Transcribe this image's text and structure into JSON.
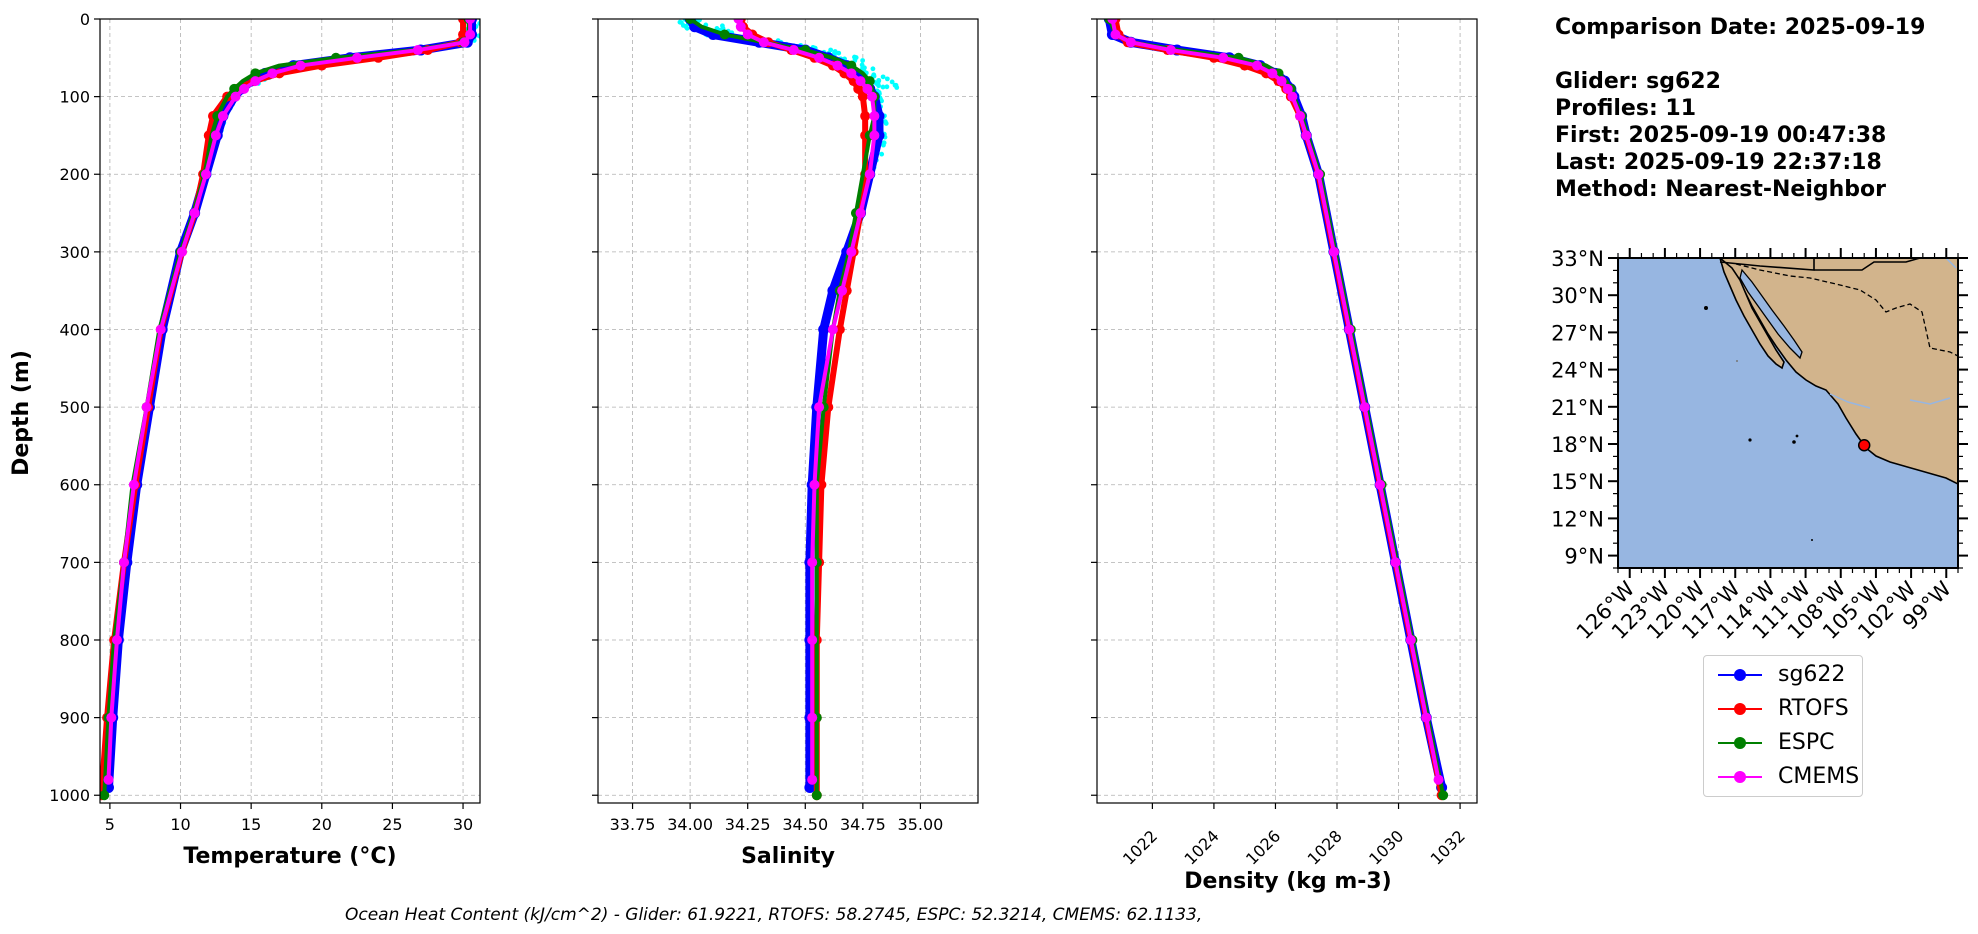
{
  "info": {
    "comparison_date": "Comparison Date: 2025-09-19",
    "glider": "Glider: sg622",
    "profiles": "Profiles: 11",
    "first": "First: 2025-09-19 00:47:38",
    "last": "Last: 2025-09-19 22:37:18",
    "method": "Method: Nearest-Neighbor"
  },
  "footer": "Ocean Heat Content (kJ/cm^2) - Glider: 61.9221,  RTOFS: 58.2745,  ESPC: 52.3214,  CMEMS: 62.1133,",
  "legend": [
    {
      "label": "sg622",
      "color": "#0000ff"
    },
    {
      "label": "RTOFS",
      "color": "#ff0000"
    },
    {
      "label": "ESPC",
      "color": "#008000"
    },
    {
      "label": "CMEMS",
      "color": "#ff00ff"
    }
  ],
  "chart_data": [
    {
      "type": "line",
      "title": "",
      "xlabel": "Temperature (°C)",
      "ylabel": "Depth (m)",
      "xlim": [
        4.3,
        31.2
      ],
      "ylim": [
        1010,
        0
      ],
      "xticks": [
        5,
        10,
        15,
        20,
        25,
        30
      ],
      "yticks": [
        0,
        100,
        200,
        300,
        400,
        500,
        600,
        700,
        800,
        900,
        1000
      ],
      "grid": true,
      "series": [
        {
          "name": "sg622",
          "color": "#0000ff",
          "depth": [
            0,
            20,
            30,
            40,
            50,
            60,
            70,
            80,
            90,
            100,
            125,
            150,
            200,
            250,
            300,
            400,
            500,
            600,
            700,
            800,
            900,
            990
          ],
          "values": [
            30.6,
            30.6,
            30.3,
            27,
            22,
            18,
            16,
            15,
            14.3,
            13.8,
            13,
            12.6,
            11.8,
            11,
            10,
            8.7,
            7.8,
            6.9,
            6.2,
            5.6,
            5.2,
            4.9
          ]
        },
        {
          "name": "RTOFS",
          "color": "#ff0000",
          "depth": [
            0,
            20,
            30,
            40,
            50,
            60,
            70,
            80,
            90,
            100,
            125,
            150,
            200,
            250,
            300,
            400,
            500,
            600,
            700,
            800,
            900,
            1000
          ],
          "values": [
            30,
            30,
            29.8,
            27.5,
            24,
            20,
            17,
            15.2,
            14,
            13.3,
            12.3,
            12,
            11.6,
            11,
            10.1,
            8.6,
            7.7,
            6.8,
            6,
            5.3,
            4.8,
            4.4
          ]
        },
        {
          "name": "ESPC",
          "color": "#008000",
          "depth": [
            0,
            20,
            30,
            40,
            50,
            60,
            70,
            80,
            90,
            100,
            125,
            150,
            200,
            250,
            300,
            400,
            500,
            600,
            700,
            800,
            900,
            1000
          ],
          "values": [
            30.4,
            30.4,
            30,
            26.5,
            21,
            17,
            15.3,
            14.4,
            13.8,
            13.3,
            12.6,
            12.2,
            11.7,
            10.9,
            10,
            8.5,
            7.6,
            6.6,
            6,
            5.3,
            4.9,
            4.6
          ]
        },
        {
          "name": "CMEMS",
          "color": "#ff00ff",
          "depth": [
            0,
            20,
            30,
            40,
            50,
            60,
            70,
            80,
            90,
            100,
            125,
            150,
            200,
            250,
            300,
            400,
            500,
            600,
            700,
            800,
            900,
            980
          ],
          "values": [
            30.5,
            30.5,
            30.1,
            26.8,
            22.5,
            18.5,
            16.5,
            15.3,
            14.5,
            13.9,
            13,
            12.5,
            11.8,
            11,
            10.1,
            8.6,
            7.6,
            6.7,
            6,
            5.5,
            5.1,
            4.9
          ]
        }
      ]
    },
    {
      "type": "line",
      "title": "",
      "xlabel": "Salinity",
      "ylabel": "",
      "xlim": [
        33.6,
        35.25
      ],
      "ylim": [
        1010,
        0
      ],
      "xticks": [
        33.75,
        34.0,
        34.25,
        34.5,
        34.75,
        35.0
      ],
      "xtick_labels": [
        "33.75",
        "34.00",
        "34.25",
        "34.50",
        "34.75",
        "35.00"
      ],
      "grid": true,
      "series": [
        {
          "name": "sg622",
          "color": "#0000ff",
          "depth": [
            0,
            10,
            20,
            30,
            40,
            50,
            60,
            70,
            80,
            90,
            100,
            125,
            150,
            200,
            250,
            300,
            350,
            400,
            500,
            600,
            700,
            800,
            900,
            990
          ],
          "values": [
            34.0,
            34.02,
            34.1,
            34.3,
            34.5,
            34.6,
            34.68,
            34.72,
            34.76,
            34.78,
            34.8,
            34.82,
            34.82,
            34.78,
            34.74,
            34.68,
            34.62,
            34.58,
            34.55,
            34.53,
            34.52,
            34.52,
            34.52,
            34.52
          ]
        },
        {
          "name": "RTOFS",
          "color": "#ff0000",
          "depth": [
            0,
            10,
            20,
            30,
            40,
            50,
            60,
            70,
            80,
            90,
            100,
            125,
            150,
            200,
            250,
            300,
            350,
            400,
            500,
            600,
            700,
            800,
            900,
            1000
          ],
          "values": [
            34.22,
            34.23,
            34.27,
            34.34,
            34.44,
            34.54,
            34.62,
            34.67,
            34.71,
            34.73,
            34.75,
            34.76,
            34.76,
            34.76,
            34.74,
            34.71,
            34.68,
            34.65,
            34.6,
            34.57,
            34.56,
            34.55,
            34.55,
            34.55
          ]
        },
        {
          "name": "ESPC",
          "color": "#008000",
          "depth": [
            0,
            10,
            20,
            30,
            40,
            50,
            60,
            70,
            80,
            90,
            100,
            125,
            150,
            200,
            250,
            300,
            350,
            400,
            500,
            600,
            700,
            800,
            900,
            1000
          ],
          "values": [
            34.0,
            34.05,
            34.15,
            34.32,
            34.5,
            34.62,
            34.7,
            34.75,
            34.78,
            34.79,
            34.8,
            34.8,
            34.78,
            34.75,
            34.72,
            34.69,
            34.65,
            34.62,
            34.58,
            34.55,
            34.55,
            34.55,
            34.55,
            34.55
          ]
        },
        {
          "name": "CMEMS",
          "color": "#ff00ff",
          "depth": [
            0,
            10,
            20,
            30,
            40,
            50,
            60,
            70,
            80,
            90,
            100,
            125,
            150,
            200,
            250,
            300,
            350,
            400,
            500,
            600,
            700,
            800,
            900,
            980
          ],
          "values": [
            34.21,
            34.22,
            34.25,
            34.32,
            34.45,
            34.56,
            34.64,
            34.7,
            34.74,
            34.77,
            34.79,
            34.8,
            34.8,
            34.78,
            34.74,
            34.7,
            34.66,
            34.62,
            34.56,
            34.54,
            34.53,
            34.53,
            34.53,
            34.53
          ]
        }
      ]
    },
    {
      "type": "line",
      "title": "",
      "xlabel": "Density (kg m-3)",
      "ylabel": "",
      "xlim": [
        1020.2,
        1032.55
      ],
      "ylim": [
        1010,
        0
      ],
      "xticks": [
        1022,
        1024,
        1026,
        1028,
        1030,
        1032
      ],
      "grid": true,
      "series": [
        {
          "name": "sg622",
          "color": "#0000ff",
          "depth": [
            0,
            20,
            30,
            40,
            50,
            60,
            70,
            80,
            90,
            100,
            125,
            150,
            200,
            300,
            400,
            500,
            600,
            700,
            800,
            900,
            990
          ],
          "values": [
            1020.6,
            1020.7,
            1021.3,
            1022.8,
            1024.5,
            1025.5,
            1026.0,
            1026.3,
            1026.5,
            1026.6,
            1026.85,
            1027.0,
            1027.4,
            1027.9,
            1028.4,
            1028.9,
            1029.4,
            1029.9,
            1030.4,
            1030.9,
            1031.4
          ]
        },
        {
          "name": "RTOFS",
          "color": "#ff0000",
          "depth": [
            0,
            20,
            30,
            40,
            50,
            60,
            70,
            80,
            90,
            100,
            125,
            150,
            200,
            300,
            400,
            500,
            600,
            700,
            800,
            900,
            1000
          ],
          "values": [
            1020.8,
            1020.9,
            1021.2,
            1022.5,
            1024.0,
            1025.0,
            1025.7,
            1026.1,
            1026.35,
            1026.5,
            1026.8,
            1027.0,
            1027.4,
            1027.9,
            1028.4,
            1028.9,
            1029.4,
            1029.9,
            1030.4,
            1030.9,
            1031.4
          ]
        },
        {
          "name": "ESPC",
          "color": "#008000",
          "depth": [
            0,
            20,
            30,
            40,
            50,
            60,
            70,
            80,
            90,
            100,
            125,
            150,
            200,
            300,
            400,
            500,
            600,
            700,
            800,
            900,
            1000
          ],
          "values": [
            1020.6,
            1020.8,
            1021.3,
            1022.9,
            1024.8,
            1025.7,
            1026.1,
            1026.35,
            1026.5,
            1026.6,
            1026.85,
            1027.05,
            1027.45,
            1027.95,
            1028.45,
            1028.95,
            1029.45,
            1029.95,
            1030.45,
            1030.95,
            1031.45
          ]
        },
        {
          "name": "CMEMS",
          "color": "#ff00ff",
          "depth": [
            0,
            20,
            30,
            40,
            50,
            60,
            70,
            80,
            90,
            100,
            125,
            150,
            200,
            300,
            400,
            500,
            600,
            700,
            800,
            900,
            980
          ],
          "values": [
            1020.7,
            1020.8,
            1021.3,
            1022.6,
            1024.3,
            1025.4,
            1025.9,
            1026.2,
            1026.4,
            1026.55,
            1026.8,
            1027.0,
            1027.4,
            1027.9,
            1028.4,
            1028.9,
            1029.4,
            1029.9,
            1030.4,
            1030.9,
            1031.3
          ]
        }
      ]
    },
    {
      "type": "map",
      "title": "",
      "lon_range": [
        -127,
        -98
      ],
      "lat_range": [
        8,
        33
      ],
      "lat_ticks": [
        33,
        30,
        27,
        24,
        21,
        18,
        15,
        12,
        9
      ],
      "lat_labels": [
        "33°N",
        "30°N",
        "27°N",
        "24°N",
        "21°N",
        "18°N",
        "15°N",
        "12°N",
        "9°N"
      ],
      "lon_ticks": [
        -126,
        -123,
        -120,
        -117,
        -114,
        -111,
        -108,
        -105,
        -102,
        -99
      ],
      "lon_labels": [
        "126°W",
        "123°W",
        "120°W",
        "117°W",
        "114°W",
        "111°W",
        "108°W",
        "105°W",
        "102°W",
        "99°W"
      ],
      "ocean_color": "#97b6e1",
      "land_color": "#d2b48c",
      "glider_location": {
        "lon": -106.0,
        "lat": 17.9,
        "color": "#ff0000"
      }
    }
  ]
}
